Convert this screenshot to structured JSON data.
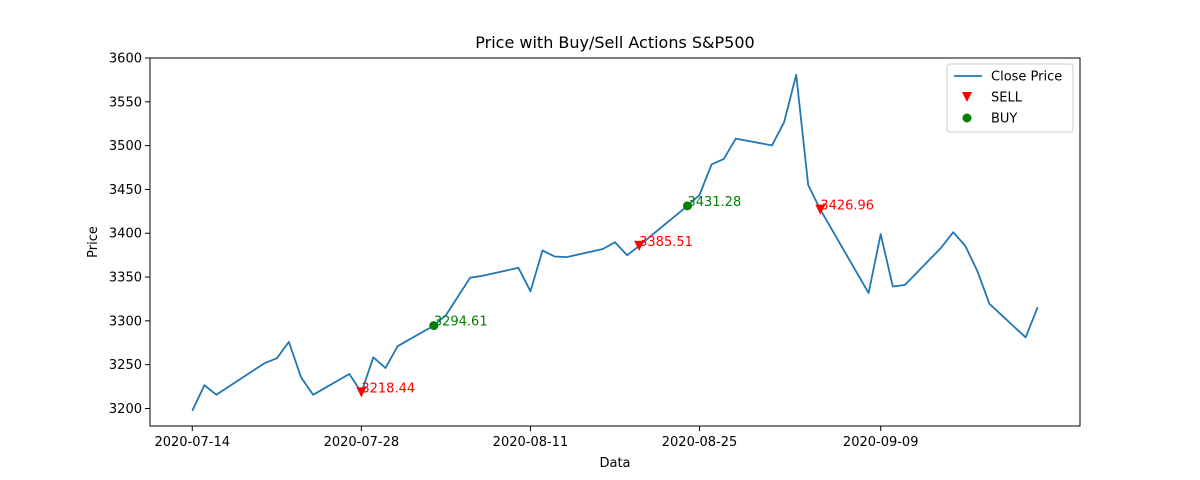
{
  "chart_data": {
    "type": "line",
    "title": "Price with Buy/Sell Actions S&P500",
    "xlabel": "Data",
    "ylabel": "Price",
    "ylim": [
      3180,
      3600
    ],
    "yticks": [
      3200,
      3250,
      3300,
      3350,
      3400,
      3450,
      3500,
      3550,
      3600
    ],
    "xticks": [
      "2020-07-14",
      "2020-07-28",
      "2020-08-11",
      "2020-08-25",
      "2020-09-09"
    ],
    "x": [
      "2020-07-14",
      "2020-07-15",
      "2020-07-16",
      "2020-07-17",
      "2020-07-20",
      "2020-07-21",
      "2020-07-22",
      "2020-07-23",
      "2020-07-24",
      "2020-07-27",
      "2020-07-28",
      "2020-07-29",
      "2020-07-30",
      "2020-07-31",
      "2020-08-03",
      "2020-08-04",
      "2020-08-05",
      "2020-08-06",
      "2020-08-07",
      "2020-08-10",
      "2020-08-11",
      "2020-08-12",
      "2020-08-13",
      "2020-08-14",
      "2020-08-17",
      "2020-08-18",
      "2020-08-19",
      "2020-08-20",
      "2020-08-21",
      "2020-08-24",
      "2020-08-25",
      "2020-08-26",
      "2020-08-27",
      "2020-08-28",
      "2020-08-31",
      "2020-09-01",
      "2020-09-02",
      "2020-09-03",
      "2020-09-04",
      "2020-09-08",
      "2020-09-09",
      "2020-09-10",
      "2020-09-11",
      "2020-09-14",
      "2020-09-15",
      "2020-09-16",
      "2020-09-17",
      "2020-09-18",
      "2020-09-21",
      "2020-09-22"
    ],
    "series": [
      {
        "name": "Close Price",
        "color": "#1f77b4",
        "values": [
          3197.5,
          3226.6,
          3215.6,
          3224.7,
          3251.8,
          3257.3,
          3276.0,
          3235.7,
          3215.6,
          3239.4,
          3218.4,
          3258.4,
          3246.2,
          3271.1,
          3294.6,
          3306.5,
          3327.8,
          3349.2,
          3351.3,
          3360.5,
          3333.7,
          3380.4,
          3373.4,
          3372.8,
          3381.99,
          3389.8,
          3374.9,
          3385.5,
          3397.2,
          3431.3,
          3443.6,
          3478.7,
          3484.6,
          3508.0,
          3500.3,
          3526.7,
          3580.8,
          3455.1,
          3426.96,
          3331.8,
          3398.96,
          3339.2,
          3340.97,
          3383.5,
          3401.2,
          3385.5,
          3357.0,
          3319.5,
          3281.1,
          3315.6
        ]
      }
    ],
    "markers": [
      {
        "name": "SELL",
        "color": "#ff0000",
        "shape": "triangle-down",
        "points": [
          {
            "x": "2020-07-28",
            "y": 3218.44,
            "label": "3218.44"
          },
          {
            "x": "2020-08-20",
            "y": 3385.51,
            "label": "3385.51"
          },
          {
            "x": "2020-09-04",
            "y": 3426.96,
            "label": "3426.96"
          }
        ]
      },
      {
        "name": "BUY",
        "color": "#008000",
        "shape": "circle",
        "points": [
          {
            "x": "2020-08-03",
            "y": 3294.61,
            "label": "3294.61"
          },
          {
            "x": "2020-08-24",
            "y": 3431.28,
            "label": "3431.28"
          }
        ]
      }
    ],
    "legend": {
      "placement": "top-right",
      "entries": [
        "Close Price",
        "SELL",
        "BUY"
      ]
    },
    "grid": false
  }
}
